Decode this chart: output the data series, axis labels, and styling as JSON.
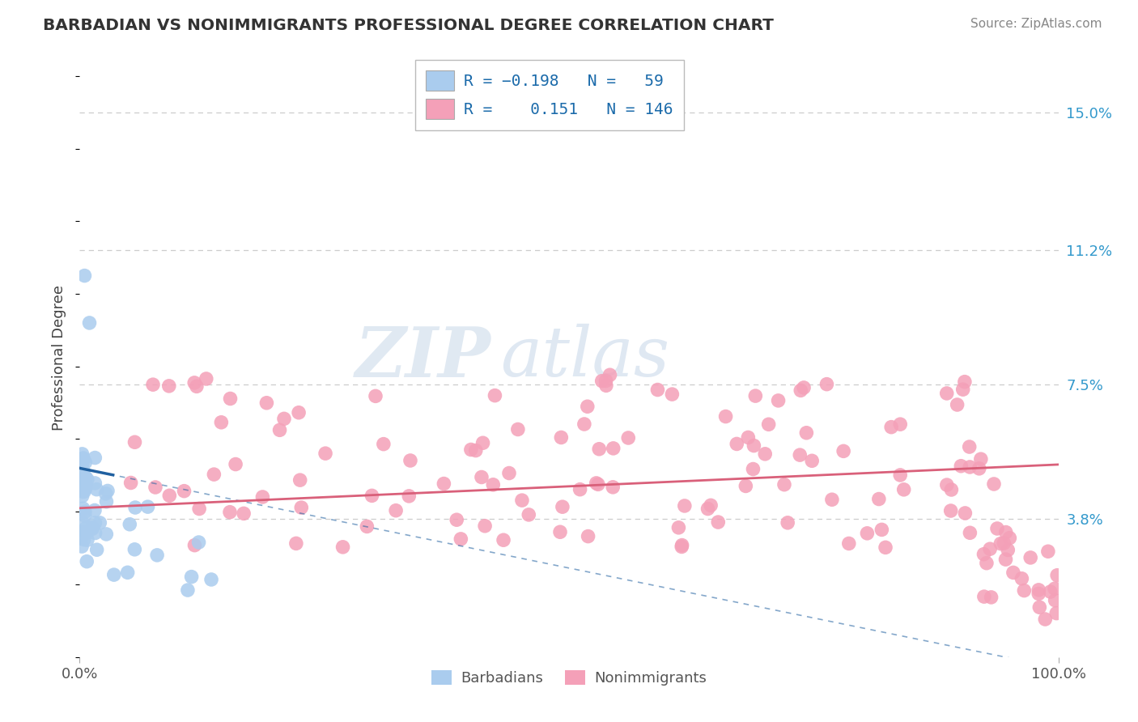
{
  "title": "BARBADIAN VS NONIMMIGRANTS PROFESSIONAL DEGREE CORRELATION CHART",
  "source": "Source: ZipAtlas.com",
  "ylabel": "Professional Degree",
  "xmin": 0.0,
  "xmax": 100.0,
  "ymin": 0.0,
  "ymax": 16.5,
  "yticks": [
    3.8,
    7.5,
    11.2,
    15.0
  ],
  "yticklabels": [
    "3.8%",
    "7.5%",
    "11.2%",
    "15.0%"
  ],
  "xticklabels": [
    "0.0%",
    "100.0%"
  ],
  "legend_label1": "Barbadians",
  "legend_label2": "Nonimmigrants",
  "blue_dot_color": "#aaccee",
  "pink_dot_color": "#f4a0b8",
  "blue_line_color": "#2060a0",
  "pink_line_color": "#d9607a",
  "grid_color": "#cccccc",
  "background_color": "#ffffff",
  "watermark_zip": "ZIP",
  "watermark_atlas": "atlas",
  "r1": -0.198,
  "n1": 59,
  "r2": 0.151,
  "n2": 146,
  "title_color": "#333333",
  "source_color": "#888888",
  "ytick_color": "#3399cc",
  "xtick_color": "#555555",
  "ylabel_color": "#444444"
}
